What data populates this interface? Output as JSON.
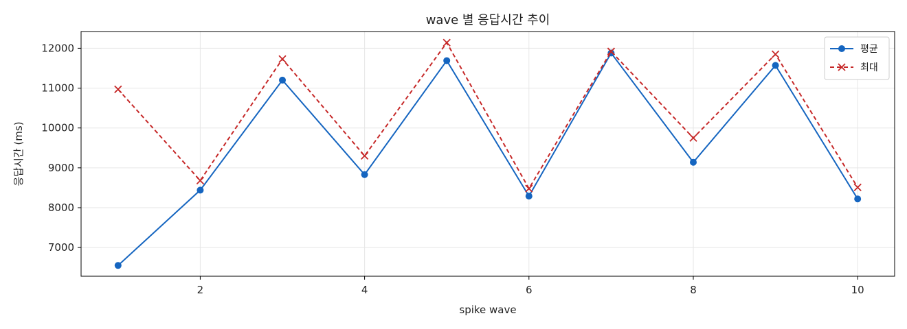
{
  "chart_data": {
    "type": "line",
    "title": "wave 별 응답시간 추이",
    "xlabel": "spike wave",
    "ylabel": "응답시간 (ms)",
    "x": [
      1,
      2,
      3,
      4,
      5,
      6,
      7,
      8,
      9,
      10
    ],
    "xlim": [
      0.55,
      10.45
    ],
    "ylim": [
      6280,
      12420
    ],
    "xticks": [
      2,
      4,
      6,
      8,
      10
    ],
    "yticks": [
      7000,
      8000,
      9000,
      10000,
      11000,
      12000
    ],
    "grid": true,
    "legend_position": "top-right",
    "series": [
      {
        "name": "평균",
        "color": "#1565c0",
        "line_style": "solid",
        "marker": "circle",
        "values": [
          6550,
          8440,
          11200,
          8830,
          11690,
          8290,
          11880,
          9140,
          11570,
          8220
        ]
      },
      {
        "name": "최대",
        "color": "#c62828",
        "line_style": "dashed",
        "marker": "x",
        "values": [
          10970,
          8680,
          11730,
          9300,
          12140,
          8480,
          11920,
          9750,
          11850,
          8510
        ]
      }
    ]
  }
}
